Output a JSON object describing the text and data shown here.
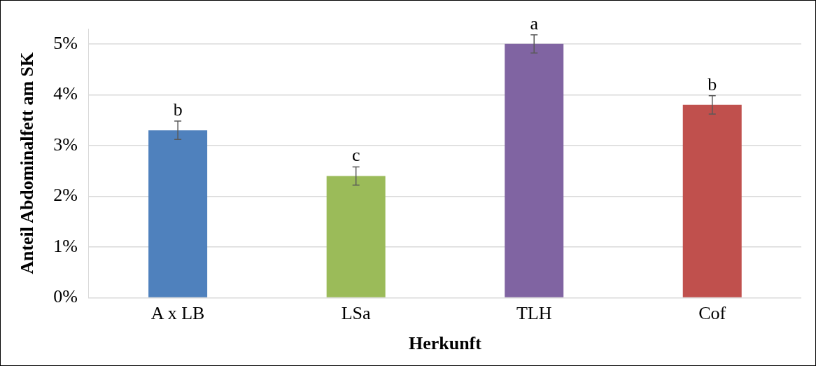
{
  "chart_data": {
    "type": "bar",
    "xlabel": "Herkunft",
    "ylabel": "Anteil Abdominalfett am SK",
    "categories": [
      "A x LB",
      "LSa",
      "TLH",
      "Cof"
    ],
    "values": [
      3.3,
      2.4,
      5.0,
      3.8
    ],
    "colors": [
      "#4f81bd",
      "#9bbb59",
      "#8064a2",
      "#c0504d"
    ],
    "errors": [
      0.18,
      0.18,
      0.18,
      0.18
    ],
    "ylim": [
      0,
      5.3
    ],
    "yticks": [
      {
        "value": 0,
        "label": "0%"
      },
      {
        "value": 1,
        "label": "1%"
      },
      {
        "value": 2,
        "label": "2%"
      },
      {
        "value": 3,
        "label": "3%"
      },
      {
        "value": 4,
        "label": "4%"
      },
      {
        "value": 5,
        "label": "5%"
      }
    ],
    "grid": "y",
    "annotations": [
      {
        "text": "b",
        "x": "A x LB",
        "y": 3.48
      },
      {
        "text": "c",
        "x": "LSa",
        "y": 2.58
      },
      {
        "text": "a",
        "x": "TLH",
        "y": 5.18
      },
      {
        "text": "b",
        "x": "Cof",
        "y": 3.98
      }
    ]
  }
}
